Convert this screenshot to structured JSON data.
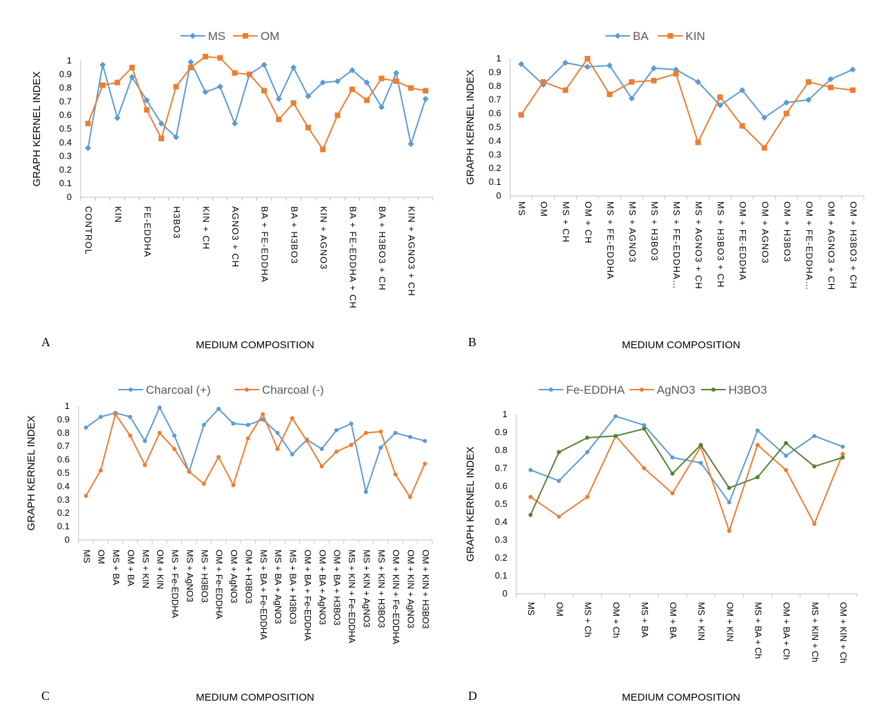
{
  "chart_data": [
    {
      "panel": "A",
      "type": "line",
      "xlabel": "MEDIUM COMPOSITION",
      "ylabel": "GRAPH KERNEL INDEX",
      "ylim": [
        0,
        1
      ],
      "yticks": [
        "0",
        "0.1",
        "0.2",
        "0.3",
        "0.4",
        "0.5",
        "0.6",
        "0.7",
        "0.8",
        "0.9",
        "1"
      ],
      "legend": "top-center",
      "grid": false,
      "x_tick_labels": [
        "CONTROL",
        "KIN",
        "FE-EDDHA",
        "H3BO3",
        "KIN + CH",
        "AGNO3 + CH",
        "BA + FE-EDDHA",
        "BA + H3BO3",
        "KIN + AGNO3",
        "BA + FE-EDDHA + CH",
        "BA + H3BO3 + CH",
        "KIN + AGNO3 + CH"
      ],
      "series": [
        {
          "name": "MS",
          "color": "#5B9BD5",
          "marker": "diamond",
          "values": [
            0.36,
            0.97,
            0.58,
            0.88,
            0.71,
            0.54,
            0.44,
            0.99,
            0.77,
            0.81,
            0.54,
            0.9,
            0.97,
            0.72,
            0.95,
            0.74,
            0.84,
            0.85,
            0.93,
            0.84,
            0.66,
            0.91,
            0.39,
            0.72
          ]
        },
        {
          "name": "OM",
          "color": "#ED7D31",
          "marker": "square",
          "values": [
            0.54,
            0.82,
            0.84,
            0.95,
            0.64,
            0.43,
            0.81,
            0.95,
            1.03,
            1.02,
            0.91,
            0.9,
            0.78,
            0.57,
            0.69,
            0.51,
            0.35,
            0.6,
            0.79,
            0.71,
            0.87,
            0.85,
            0.8,
            0.78
          ]
        }
      ]
    },
    {
      "panel": "B",
      "type": "line",
      "xlabel": "MEDIUM COMPOSITION",
      "ylabel": "GRAPH KERNEL INDEX",
      "ylim": [
        0,
        1
      ],
      "yticks": [
        "0",
        "0.1",
        "0.2",
        "0.3",
        "0.4",
        "0.5",
        "0.6",
        "0.7",
        "0.8",
        "0.9",
        "1"
      ],
      "legend": "top-center",
      "grid": false,
      "categories": [
        "MS",
        "OM",
        "MS + CH",
        "OM + CH",
        "MS + FE-EDDHA",
        "MS + AGNO3",
        "MS + H3BO3",
        "MS + FE-EDDHA…",
        "MS + AGNO3 + CH",
        "MS + H3BO3 + CH",
        "OM + FE-EDDHA",
        "OM + AGNO3",
        "OM + H3BO3",
        "OM + FE-EDDHA…",
        "OM + AGNO3 + CH",
        "OM + H3BO3 + CH"
      ],
      "series": [
        {
          "name": "BA",
          "color": "#5B9BD5",
          "marker": "diamond",
          "values": [
            0.96,
            0.81,
            0.97,
            0.94,
            0.95,
            0.71,
            0.93,
            0.92,
            0.83,
            0.66,
            0.77,
            0.57,
            0.68,
            0.7,
            0.85,
            0.92
          ]
        },
        {
          "name": "KIN",
          "color": "#ED7D31",
          "marker": "square",
          "values": [
            0.59,
            0.83,
            0.77,
            1.0,
            0.74,
            0.83,
            0.84,
            0.89,
            0.39,
            0.72,
            0.51,
            0.35,
            0.6,
            0.83,
            0.79,
            0.77
          ]
        }
      ]
    },
    {
      "panel": "C",
      "type": "line",
      "xlabel": "MEDIUM COMPOSITION",
      "ylabel": "GRAPH KERNEL INDEX",
      "ylim": [
        0,
        1
      ],
      "yticks": [
        "0",
        "0.1",
        "0.2",
        "0.3",
        "0.4",
        "0.5",
        "0.6",
        "0.7",
        "0.8",
        "0.9",
        "1"
      ],
      "legend": "top-center",
      "grid": false,
      "categories": [
        "MS",
        "OM",
        "MS + BA",
        "OM + BA",
        "MS + KIN",
        "OM + KIN",
        "MS + Fe-EDDHA",
        "MS + AgNO3",
        "MS + H3BO3",
        "OM + Fe-EDDHA",
        "OM + AgNO3",
        "OM + H3BO3",
        "MS + BA + Fe-EDDHA",
        "MS + BA + AgNO3",
        "MS + BA + H3BO3",
        "OM + BA + Fe-EDDHA",
        "OM + BA + AgNO3",
        "OM + BA + H3BO3",
        "MS + KIN + Fe-EDDHA",
        "MS + KIN + AgNO3",
        "MS + KIN + H3BO3",
        "OM + KIN + Fe-EDDHA",
        "OM + KIN + AgNO3",
        "OM + KIN + H3BO3"
      ],
      "series": [
        {
          "name": "Charcoal (+)",
          "color": "#5B9BD5",
          "marker": "circle",
          "values": [
            0.84,
            0.92,
            0.95,
            0.92,
            0.74,
            0.99,
            0.78,
            0.51,
            0.86,
            0.98,
            0.87,
            0.86,
            0.9,
            0.8,
            0.64,
            0.75,
            0.68,
            0.82,
            0.87,
            0.36,
            0.69,
            0.8,
            0.77,
            0.74
          ]
        },
        {
          "name": "Charcoal (-)",
          "color": "#ED7D31",
          "marker": "circle",
          "values": [
            0.33,
            0.52,
            0.94,
            0.78,
            0.56,
            0.8,
            0.68,
            0.51,
            0.42,
            0.62,
            0.41,
            0.76,
            0.94,
            0.68,
            0.91,
            0.74,
            0.55,
            0.66,
            0.71,
            0.8,
            0.81,
            0.49,
            0.32,
            0.57
          ]
        }
      ]
    },
    {
      "panel": "D",
      "type": "line",
      "xlabel": "MEDIUM COMPOSITION",
      "ylabel": "GRAPH KERNEL INDEX",
      "ylim": [
        0,
        1
      ],
      "yticks": [
        "0",
        "0.1",
        "0.2",
        "0.3",
        "0.4",
        "0.5",
        "0.6",
        "0.7",
        "0.8",
        "0.9",
        "1"
      ],
      "legend": "top-center",
      "grid": false,
      "categories": [
        "MS",
        "OM",
        "MS + Ch",
        "OM + Ch",
        "MS + BA",
        "OM + BA",
        "MS + KIN",
        "OM + KIN",
        "MS + BA + Ch",
        "OM + BA + Ch",
        "MS + KIN + Ch",
        "OM + KIN + Ch"
      ],
      "series": [
        {
          "name": "Fe-EDDHA",
          "color": "#5B9BD5",
          "marker": "circle",
          "values": [
            0.69,
            0.63,
            0.79,
            0.99,
            0.94,
            0.76,
            0.73,
            0.51,
            0.91,
            0.77,
            0.88,
            0.82
          ]
        },
        {
          "name": "AgNO3",
          "color": "#ED7D31",
          "marker": "circle",
          "values": [
            0.54,
            0.43,
            0.54,
            0.88,
            0.7,
            0.56,
            0.82,
            0.35,
            0.83,
            0.69,
            0.39,
            0.78
          ]
        },
        {
          "name": "H3BO3",
          "color": "#548235",
          "marker": "circle",
          "values": [
            0.44,
            0.79,
            0.87,
            0.88,
            0.92,
            0.67,
            0.83,
            0.59,
            0.65,
            0.84,
            0.71,
            0.76
          ]
        }
      ]
    }
  ]
}
